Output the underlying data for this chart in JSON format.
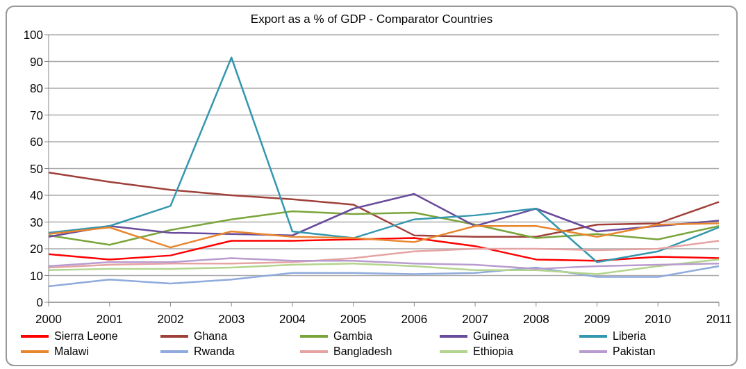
{
  "chart_data": {
    "type": "line",
    "title": "Export as a % of GDP - Comparator Countries",
    "categories": [
      "2000",
      "2001",
      "2002",
      "2003",
      "2004",
      "2005",
      "2006",
      "2007",
      "2008",
      "2009",
      "2010",
      "2011"
    ],
    "series": [
      {
        "name": "Sierra Leone",
        "color": "#ff0000",
        "values": [
          18,
          16,
          17.5,
          23,
          23,
          23.5,
          24,
          21,
          16,
          15.5,
          17,
          16.5
        ]
      },
      {
        "name": "Ghana",
        "color": "#a0403a",
        "values": [
          48.5,
          45,
          42,
          40,
          38.5,
          36.5,
          25,
          24.5,
          24.5,
          29,
          29.5,
          37.5
        ]
      },
      {
        "name": "Gambia",
        "color": "#7aa53c",
        "values": [
          25,
          21.5,
          27,
          31,
          34,
          33,
          33.5,
          29,
          24,
          25.5,
          23.5,
          28.5
        ]
      },
      {
        "name": "Guinea",
        "color": "#6a4c9c",
        "values": [
          24.5,
          28.5,
          26,
          25.5,
          25,
          35,
          40.5,
          28.5,
          35,
          26.5,
          28.5,
          30.5
        ]
      },
      {
        "name": "Liberia",
        "color": "#3397ae",
        "values": [
          26,
          28.5,
          36,
          91.5,
          26.5,
          24,
          31,
          32.5,
          35,
          15,
          19,
          28
        ]
      },
      {
        "name": "Malawi",
        "color": "#e8862e",
        "values": [
          25.5,
          28,
          20.5,
          26.5,
          24.5,
          24,
          22.5,
          28.5,
          28.5,
          24.5,
          29,
          29.5
        ]
      },
      {
        "name": "Rwanda",
        "color": "#8faadc",
        "values": [
          6,
          8.5,
          7,
          8.5,
          11,
          11,
          10.5,
          11,
          13,
          9.5,
          9.5,
          13.5
        ]
      },
      {
        "name": "Bangladesh",
        "color": "#e6a3a3",
        "values": [
          13,
          14,
          14.5,
          14.5,
          15,
          16.5,
          19,
          20,
          20,
          19.5,
          20,
          23
        ]
      },
      {
        "name": "Ethiopia",
        "color": "#b3d48c",
        "values": [
          12,
          12.5,
          12.5,
          13,
          14,
          14.5,
          13.5,
          12,
          12,
          10.5,
          13.5,
          16
        ]
      },
      {
        "name": "Pakistan",
        "color": "#b99ccf",
        "values": [
          13.5,
          15,
          15,
          16.5,
          15.5,
          15.5,
          14.5,
          14,
          12.5,
          13.5,
          14,
          14.5
        ]
      }
    ],
    "ylim": [
      0,
      100
    ],
    "yticks": [
      0,
      10,
      20,
      30,
      40,
      50,
      60,
      70,
      80,
      90,
      100
    ],
    "grid": "y",
    "legend": "bottom",
    "marker": "none",
    "line_style": "solid"
  }
}
